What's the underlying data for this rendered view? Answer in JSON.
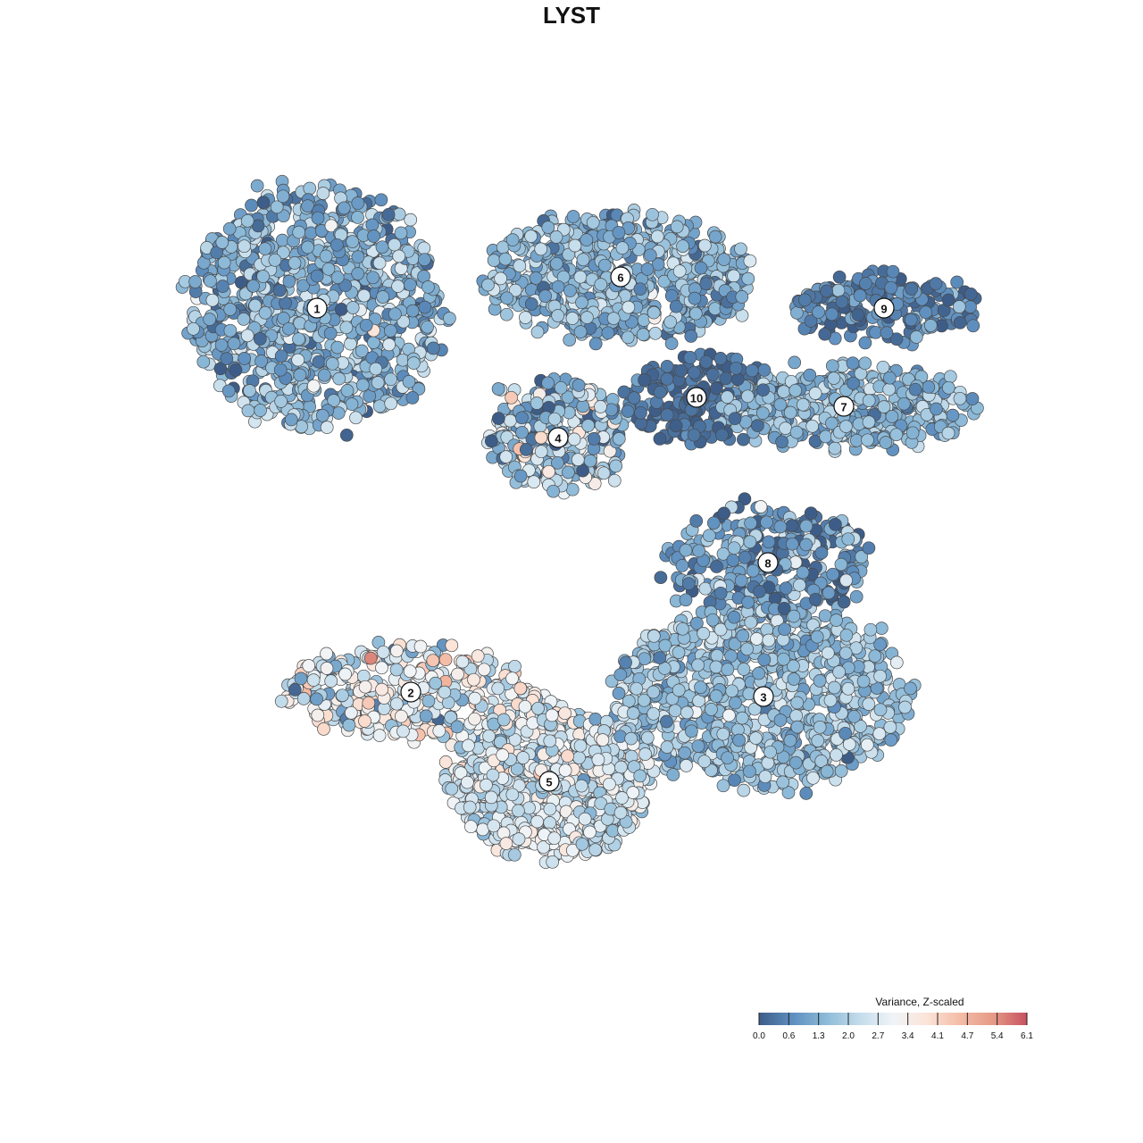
{
  "chart_data": {
    "type": "scatter",
    "title": "LYST",
    "xlabel": "",
    "ylabel": "",
    "grid": false,
    "legend": {
      "title": "Variance, Z-scaled",
      "placement": "bottom-right",
      "ticks": [
        "0.0",
        "0.6",
        "1.3",
        "2.0",
        "2.7",
        "3.4",
        "4.1",
        "4.7",
        "5.4",
        "6.1"
      ],
      "range": [
        0.0,
        6.1
      ],
      "colors": [
        "#3d5d88",
        "#5e8fbf",
        "#8dbad8",
        "#c3dceb",
        "#f0f4f7",
        "#fbe4d8",
        "#f4bca6",
        "#e59a86",
        "#c6515f"
      ]
    },
    "clusters": [
      {
        "label": "1",
        "cx": -0.62,
        "cy": 0.59,
        "rx": 0.28,
        "ry": 0.27,
        "mean": 1.4,
        "sd": 0.7,
        "n": 900
      },
      {
        "label": "2",
        "cx": -0.41,
        "cy": -0.27,
        "rx": 0.28,
        "ry": 0.1,
        "mean": 2.8,
        "sd": 1.0,
        "n": 330
      },
      {
        "label": "3",
        "cx": 0.38,
        "cy": -0.28,
        "rx": 0.34,
        "ry": 0.2,
        "mean": 1.7,
        "sd": 0.5,
        "n": 900
      },
      {
        "label": "4",
        "cx": -0.08,
        "cy": 0.3,
        "rx": 0.15,
        "ry": 0.13,
        "mean": 2.0,
        "sd": 1.0,
        "n": 320
      },
      {
        "label": "5",
        "cx": -0.1,
        "cy": -0.47,
        "rx": 0.22,
        "ry": 0.17,
        "mean": 2.6,
        "sd": 0.6,
        "n": 950
      },
      {
        "label": "6",
        "cx": 0.06,
        "cy": 0.66,
        "rx": 0.3,
        "ry": 0.14,
        "mean": 1.5,
        "sd": 0.6,
        "n": 650
      },
      {
        "label": "7",
        "cx": 0.56,
        "cy": 0.37,
        "rx": 0.29,
        "ry": 0.09,
        "mean": 1.5,
        "sd": 0.5,
        "n": 420
      },
      {
        "label": "8",
        "cx": 0.39,
        "cy": 0.02,
        "rx": 0.22,
        "ry": 0.12,
        "mean": 1.0,
        "sd": 0.8,
        "n": 300
      },
      {
        "label": "9",
        "cx": 0.65,
        "cy": 0.59,
        "rx": 0.21,
        "ry": 0.07,
        "mean": 0.6,
        "sd": 0.5,
        "n": 200
      },
      {
        "label": "10",
        "cx": 0.23,
        "cy": 0.39,
        "rx": 0.17,
        "ry": 0.1,
        "mean": 0.25,
        "sd": 0.3,
        "n": 180
      }
    ]
  }
}
